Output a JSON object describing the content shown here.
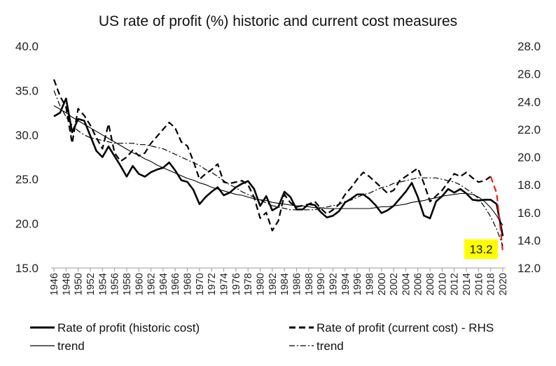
{
  "chart_data": {
    "type": "line",
    "title": "US rate of profit (%) historic and current cost measures",
    "xlabel": "",
    "ylabel": "",
    "ylim_left": [
      15.0,
      40.0
    ],
    "ylim_right": [
      12.0,
      28.0
    ],
    "yticks_left": [
      "15.0",
      "20.0",
      "25.0",
      "30.0",
      "35.0",
      "40.0"
    ],
    "yticks_right": [
      "12.0",
      "14.0",
      "16.0",
      "18.0",
      "20.0",
      "22.0",
      "24.0",
      "26.0",
      "28.0"
    ],
    "x_tick_labels": [
      "1946",
      "1948",
      "1950",
      "1952",
      "1954",
      "1956",
      "1958",
      "1960",
      "1962",
      "1964",
      "1966",
      "1968",
      "1970",
      "1972",
      "1974",
      "1976",
      "1978",
      "1980",
      "1982",
      "1984",
      "1986",
      "1988",
      "1990",
      "1992",
      "1994",
      "1996",
      "1998",
      "2000",
      "2002",
      "2004",
      "2006",
      "2008",
      "2010",
      "2012",
      "2014",
      "2016",
      "2018",
      "2020"
    ],
    "x": [
      1946,
      1947,
      1948,
      1949,
      1950,
      1951,
      1952,
      1953,
      1954,
      1955,
      1956,
      1957,
      1958,
      1959,
      1960,
      1961,
      1962,
      1963,
      1964,
      1965,
      1966,
      1967,
      1968,
      1969,
      1970,
      1971,
      1972,
      1973,
      1974,
      1975,
      1976,
      1977,
      1978,
      1979,
      1980,
      1981,
      1982,
      1983,
      1984,
      1985,
      1986,
      1987,
      1988,
      1989,
      1990,
      1991,
      1992,
      1993,
      1994,
      1995,
      1996,
      1997,
      1998,
      1999,
      2000,
      2001,
      2002,
      2003,
      2004,
      2005,
      2006,
      2007,
      2008,
      2009,
      2010,
      2011,
      2012,
      2013,
      2014,
      2015,
      2016,
      2017,
      2018,
      2019,
      2020
    ],
    "grid": false,
    "legend_position": "bottom",
    "series": [
      {
        "name": "Rate of profit (historic cost)",
        "axis": "left",
        "color": "#000000",
        "style": "solid-thick",
        "values": [
          32.1,
          32.5,
          34.1,
          30.3,
          31.8,
          31.6,
          29.9,
          28.2,
          27.5,
          28.7,
          27.6,
          26.5,
          25.3,
          26.5,
          25.6,
          25.3,
          25.8,
          26.1,
          26.3,
          26.9,
          26.0,
          24.9,
          24.7,
          23.8,
          22.2,
          23.0,
          23.6,
          24.1,
          23.2,
          23.5,
          24.1,
          24.5,
          24.8,
          23.9,
          22.0,
          23.1,
          21.5,
          21.9,
          23.6,
          23.0,
          21.6,
          21.6,
          22.2,
          22.1,
          21.3,
          20.7,
          20.9,
          21.4,
          22.4,
          22.8,
          23.3,
          23.3,
          22.8,
          22.1,
          21.2,
          21.5,
          22.0,
          22.8,
          23.6,
          24.6,
          23.0,
          20.9,
          20.6,
          22.5,
          23.1,
          23.9,
          23.5,
          23.9,
          23.4,
          22.7,
          22.6,
          22.7,
          22.7,
          22.2,
          18.6
        ]
      },
      {
        "name": "Rate of profit (current cost) - RHS",
        "axis": "right",
        "color": "#000000",
        "style": "dashed",
        "values": [
          25.6,
          24.4,
          23.6,
          21.0,
          23.5,
          23.0,
          22.3,
          21.4,
          20.6,
          22.4,
          20.3,
          19.7,
          20.0,
          20.5,
          20.1,
          20.3,
          21.0,
          21.5,
          22.0,
          22.5,
          22.1,
          21.1,
          20.8,
          19.7,
          18.4,
          18.8,
          19.1,
          19.5,
          18.2,
          18.1,
          18.2,
          18.3,
          18.0,
          17.1,
          15.6,
          16.0,
          14.7,
          15.4,
          17.3,
          16.7,
          16.4,
          16.5,
          16.6,
          16.8,
          16.3,
          15.9,
          16.2,
          16.6,
          17.3,
          17.8,
          18.4,
          18.9,
          18.6,
          18.2,
          17.8,
          17.4,
          17.6,
          18.3,
          18.6,
          18.9,
          19.2,
          18.1,
          16.8,
          17.2,
          17.6,
          18.2,
          18.8,
          18.6,
          18.9,
          18.5,
          18.2,
          18.3,
          18.6,
          17.4,
          13.2
        ]
      },
      {
        "name": "trend",
        "axis": "left",
        "color": "#000000",
        "style": "solid-thin",
        "values": [
          33.3,
          32.9,
          32.5,
          32.0,
          31.6,
          31.2,
          30.8,
          30.4,
          30.0,
          29.6,
          29.2,
          28.8,
          28.4,
          28.0,
          27.7,
          27.3,
          27.0,
          26.6,
          26.3,
          26.0,
          25.7,
          25.4,
          25.1,
          24.9,
          24.6,
          24.4,
          24.1,
          23.9,
          23.7,
          23.5,
          23.3,
          23.2,
          23.0,
          22.8,
          22.7,
          22.6,
          22.4,
          22.3,
          22.2,
          22.1,
          22.0,
          22.0,
          21.9,
          21.8,
          21.8,
          21.7,
          21.7,
          21.7,
          21.7,
          21.7,
          21.7,
          21.7,
          21.7,
          21.8,
          21.9,
          21.9,
          22.0,
          22.1,
          22.2,
          22.4,
          22.5,
          22.6,
          22.8,
          22.9,
          23.1,
          23.2,
          23.3,
          23.4,
          23.4,
          23.3,
          23.0,
          22.5,
          21.8,
          20.9,
          19.8
        ]
      },
      {
        "name": "trend",
        "axis": "right",
        "color": "#000000",
        "style": "dash-dot",
        "values": [
          24.8,
          23.7,
          22.9,
          22.3,
          21.9,
          21.6,
          21.4,
          21.3,
          21.2,
          21.1,
          21.0,
          21.0,
          21.0,
          21.0,
          20.9,
          20.9,
          20.8,
          20.7,
          20.6,
          20.4,
          20.2,
          20.0,
          19.8,
          19.6,
          19.4,
          19.1,
          18.9,
          18.6,
          18.3,
          18.0,
          17.8,
          17.5,
          17.3,
          17.1,
          16.9,
          16.7,
          16.5,
          16.4,
          16.3,
          16.2,
          16.2,
          16.2,
          16.2,
          16.2,
          16.3,
          16.4,
          16.5,
          16.6,
          16.8,
          16.9,
          17.1,
          17.3,
          17.4,
          17.6,
          17.8,
          17.9,
          18.1,
          18.2,
          18.3,
          18.4,
          18.5,
          18.5,
          18.5,
          18.5,
          18.4,
          18.3,
          18.2,
          18.0,
          17.7,
          17.4,
          17.0,
          16.4,
          15.7,
          14.8,
          13.6
        ]
      }
    ],
    "highlight": {
      "color": "#e8201a",
      "x_from": 2018,
      "x_to": 2020,
      "series_index": 1
    },
    "annotation": {
      "text": "13.2",
      "background": "#ffff00"
    }
  }
}
